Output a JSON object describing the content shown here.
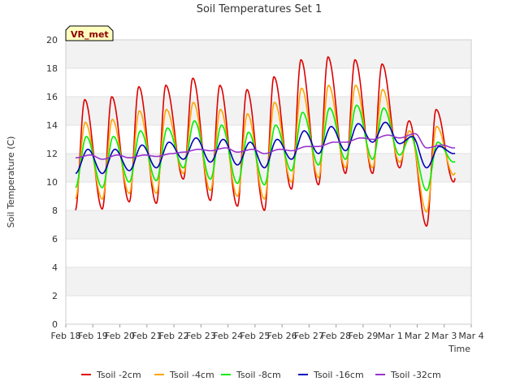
{
  "chart_data": {
    "type": "line",
    "title": "Soil Temperatures Set 1",
    "xlabel": "Time",
    "ylabel": "Soil Temperature (C)",
    "station_badge": "VR_met",
    "x_tick_labels": [
      "Feb 18",
      "Feb 19",
      "Feb 20",
      "Feb 21",
      "Feb 22",
      "Feb 23",
      "Feb 24",
      "Feb 25",
      "Feb 26",
      "Feb 27",
      "Feb 28",
      "Feb 29",
      "Mar 1",
      "Mar 2",
      "Mar 3",
      "Mar 4"
    ],
    "xlim_days": [
      0,
      15
    ],
    "ylim": [
      0,
      20
    ],
    "y_ticks": [
      0,
      2,
      4,
      6,
      8,
      10,
      12,
      14,
      16,
      18,
      20
    ],
    "grid": "horizontal bands",
    "legend_placement": "bottom",
    "series": [
      {
        "name": "Tsoil -2cm",
        "color": "#dd0000",
        "daily_min": [
          8.0,
          8.1,
          8.6,
          8.5,
          10.2,
          8.7,
          8.3,
          8.0,
          9.5,
          9.8,
          10.6,
          10.6,
          11.0,
          6.9,
          10.0
        ],
        "daily_max": [
          15.8,
          16.0,
          16.7,
          16.8,
          17.3,
          16.8,
          16.5,
          17.4,
          18.6,
          18.8,
          18.6,
          18.3,
          14.3,
          15.1,
          15.1
        ]
      },
      {
        "name": "Tsoil -4cm",
        "color": "#ffa500",
        "daily_min": [
          8.8,
          8.8,
          9.2,
          9.2,
          10.6,
          9.4,
          9.0,
          8.8,
          10.0,
          10.3,
          11.0,
          11.0,
          11.4,
          7.9,
          10.5
        ],
        "daily_max": [
          14.2,
          14.4,
          15.0,
          15.1,
          15.6,
          15.1,
          14.8,
          15.6,
          16.6,
          16.8,
          16.8,
          16.5,
          13.6,
          13.9,
          13.9
        ]
      },
      {
        "name": "Tsoil -8cm",
        "color": "#00ee00",
        "daily_min": [
          9.6,
          9.6,
          10.0,
          10.1,
          11.0,
          10.2,
          9.9,
          9.8,
          10.8,
          11.2,
          11.6,
          11.6,
          11.9,
          9.4,
          11.4
        ],
        "daily_max": [
          13.2,
          13.2,
          13.6,
          13.8,
          14.3,
          14.0,
          13.5,
          14.0,
          14.9,
          15.2,
          15.4,
          15.2,
          13.2,
          12.8,
          12.8
        ]
      },
      {
        "name": "Tsoil -16cm",
        "color": "#0000bb",
        "daily_min": [
          10.6,
          10.6,
          10.8,
          11.0,
          11.6,
          11.4,
          11.2,
          11.0,
          11.6,
          12.0,
          12.2,
          12.8,
          12.7,
          11.0,
          12.0
        ],
        "daily_max": [
          12.3,
          12.3,
          12.6,
          12.8,
          13.1,
          13.0,
          12.8,
          13.0,
          13.6,
          13.9,
          14.1,
          14.2,
          13.2,
          12.5,
          12.5
        ]
      },
      {
        "name": "Tsoil -32cm",
        "color": "#9933cc",
        "daily_min": [
          11.7,
          11.6,
          11.7,
          11.8,
          12.1,
          12.2,
          12.1,
          12.0,
          12.2,
          12.5,
          12.8,
          13.0,
          13.1,
          12.4,
          12.4
        ],
        "daily_max": [
          11.9,
          11.9,
          11.9,
          12.0,
          12.3,
          12.4,
          12.3,
          12.3,
          12.5,
          12.8,
          13.1,
          13.3,
          13.4,
          12.6,
          12.6
        ]
      }
    ]
  }
}
